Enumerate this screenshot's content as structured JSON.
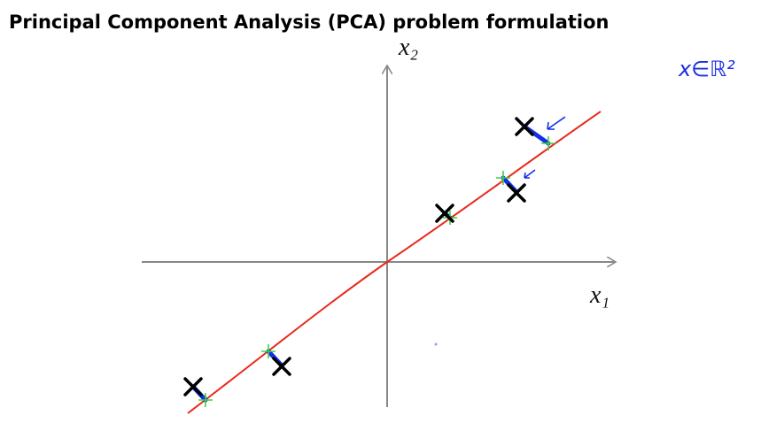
{
  "header": {
    "title": "Principal Component Analysis (PCA) problem formulation"
  },
  "diagram": {
    "x_axis_label": "x₁",
    "y_axis_label": "x₂",
    "annotation": "x∈ℝ²"
  }
}
